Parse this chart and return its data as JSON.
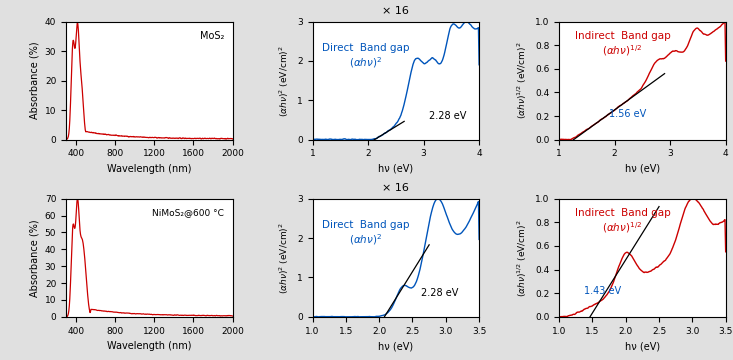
{
  "fig_width": 7.33,
  "fig_height": 3.6,
  "dpi": 100,
  "bg_color": "#e0e0e0",
  "plot_bg": "#ffffff",
  "top_label": "MoS₂",
  "bottom_label": "NiMoS₂@600 °C",
  "x16_label": "× 16",
  "wavelength_xlabel": "Wavelength (nm)",
  "hv_xlabel": "hν (eV)",
  "top_direct_bandgap": "2.28 eV",
  "top_indirect_bandgap": "1.56 eV",
  "bottom_direct_bandgap": "2.28 eV",
  "bottom_indirect_bandgap": "1.43 eV",
  "red_color": "#cc0000",
  "blue_color": "#0055bb",
  "black_color": "#000000"
}
